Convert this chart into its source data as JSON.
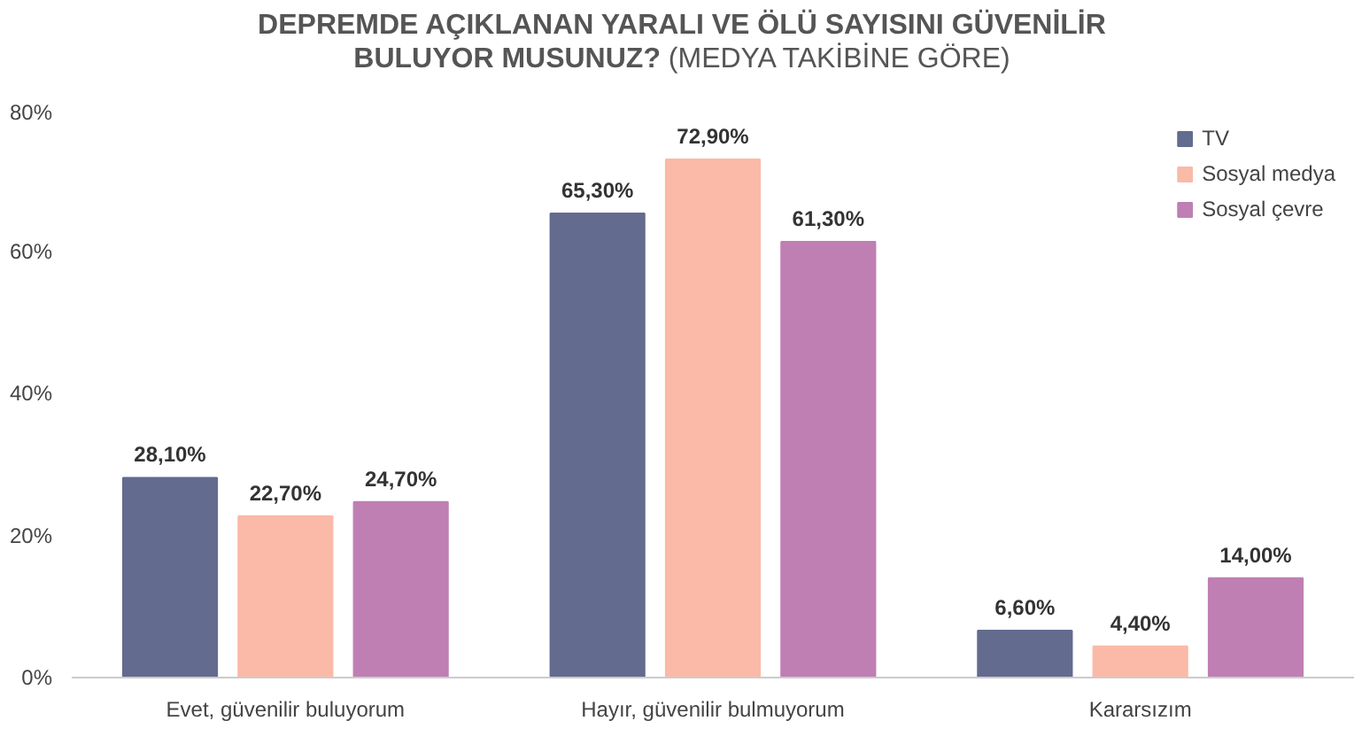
{
  "chart_data": {
    "type": "bar",
    "title": "DEPREMDE AÇIKLANAN YARALI VE ÖLÜ SAYISINI GÜVENİLİR BULUYOR MUSUNUZ?",
    "subtitle": "(MEDYA TAKİBİNE GÖRE)",
    "categories": [
      "Evet, güvenilir buluyorum",
      "Hayır, güvenilir bulmuyorum",
      "Kararsızım"
    ],
    "series": [
      {
        "name": "TV",
        "color": "#636b8f",
        "values": [
          28.1,
          65.3,
          6.6
        ],
        "value_labels": [
          "28,10%",
          "65,30%",
          "6,60%"
        ]
      },
      {
        "name": "Sosyal medya",
        "color": "#fbb9a8",
        "values": [
          22.7,
          72.9,
          4.4
        ],
        "value_labels": [
          "22,70%",
          "72,90%",
          "4,40%"
        ]
      },
      {
        "name": "Sosyal çevre",
        "color": "#bf7fb3",
        "values": [
          24.7,
          61.3,
          14.0
        ],
        "value_labels": [
          "24,70%",
          "61,30%",
          "14,00%"
        ]
      }
    ],
    "ylim": [
      0,
      80
    ],
    "yticks": [
      {
        "value": 0,
        "label": "0%"
      },
      {
        "value": 20,
        "label": "20%"
      },
      {
        "value": 40,
        "label": "40%"
      },
      {
        "value": 60,
        "label": "60%"
      },
      {
        "value": 80,
        "label": "80%"
      }
    ],
    "legend": "top right"
  }
}
